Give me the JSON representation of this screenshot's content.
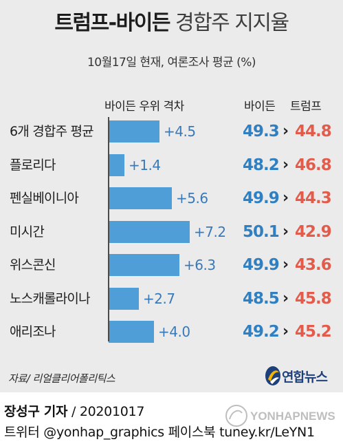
{
  "title": {
    "bold": "트럼프-바이든",
    "light": "경합주 지지율"
  },
  "subtitle": "10월17일 현재, 여론조사 평균 (%)",
  "headers": {
    "gap": "바이든 우위 격차",
    "biden": "바이든",
    "trump": "트럼프"
  },
  "colors": {
    "bar": "#4f9ed7",
    "gap_label": "#3a79b8",
    "biden": "#2f7fc1",
    "trump": "#e35c4b",
    "background": "#ebebeb"
  },
  "chart_data": {
    "type": "bar",
    "orientation": "horizontal",
    "categories": [
      "6개 경합주 평균",
      "플로리다",
      "펜실베이니아",
      "미시간",
      "위스콘신",
      "노스캐롤라이나",
      "애리조나"
    ],
    "series": [
      {
        "name": "바이든 우위 격차",
        "values": [
          4.5,
          1.4,
          5.6,
          7.2,
          6.3,
          2.7,
          4.0
        ]
      },
      {
        "name": "바이든",
        "values": [
          49.3,
          48.2,
          49.9,
          50.1,
          49.9,
          48.5,
          49.2
        ]
      },
      {
        "name": "트럼프",
        "values": [
          44.8,
          46.8,
          44.3,
          42.9,
          43.6,
          45.8,
          45.2
        ]
      }
    ],
    "gap_labels": [
      "+4.5",
      "+1.4",
      "+5.6",
      "+7.2",
      "+6.3",
      "+2.7",
      "+4.0"
    ],
    "biden_labels": [
      "49.3",
      "48.2",
      "49.9",
      "50.1",
      "49.9",
      "48.5",
      "49.2"
    ],
    "trump_labels": [
      "44.8",
      "46.8",
      "44.3",
      "42.9",
      "43.6",
      "45.8",
      "45.2"
    ],
    "xlim": [
      0,
      8
    ],
    "grid": false
  },
  "source": "자료/ 리얼클리어폴리틱스",
  "logo": {
    "icon": "yonhap-swirl-icon",
    "text": "연합뉴스"
  },
  "credit": {
    "name": "장성구 기자",
    "sep": " / ",
    "date": "20201017",
    "line2": "트위터 @yonhap_graphics  페이스북 tuney.kr/LeYN1"
  },
  "watermark": "YONHAPNEWS"
}
